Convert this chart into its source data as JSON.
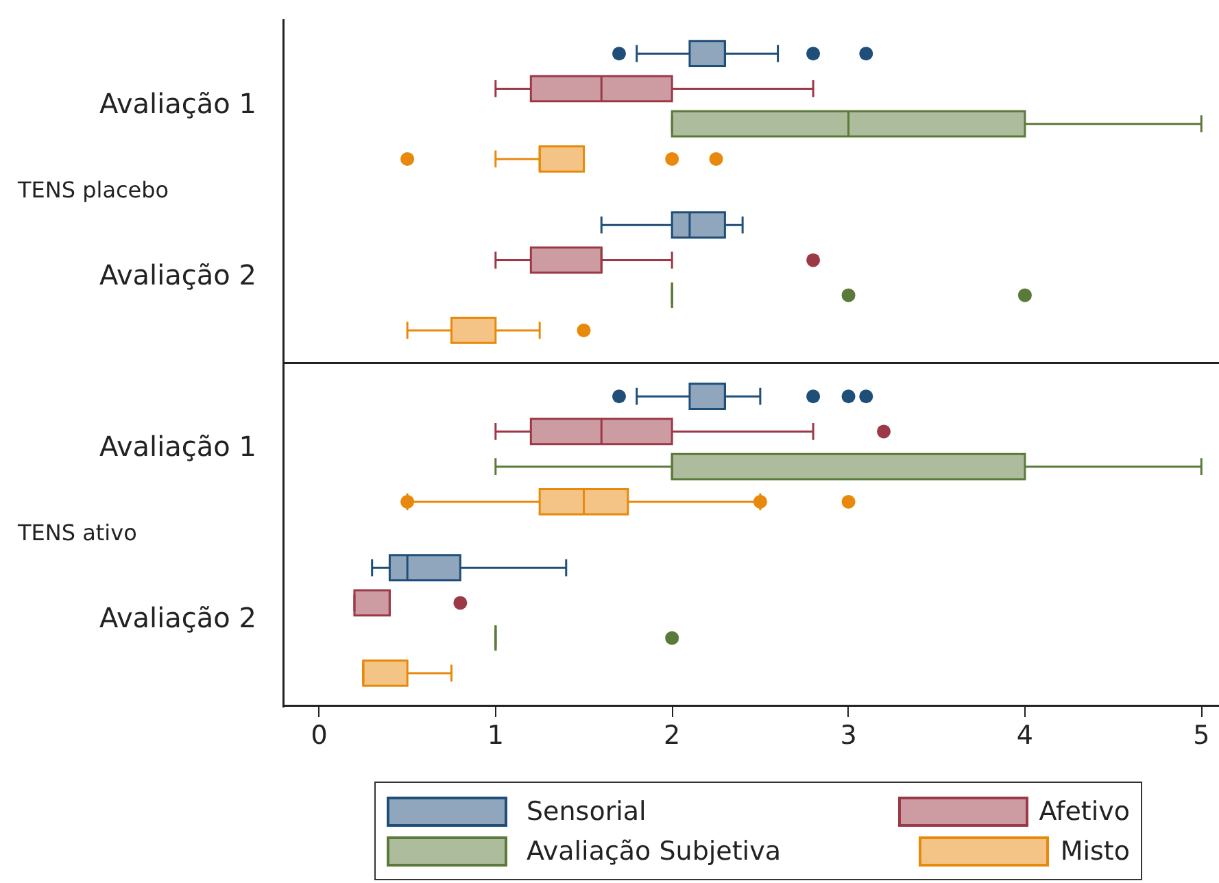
{
  "chart_data": [
    {
      "type": "box",
      "orientation": "horizontal",
      "ylabel": "TENS placebo",
      "categories": [
        "Avaliação 1",
        "Avaliação 2"
      ],
      "xlim": [
        -0.2,
        5.1
      ],
      "xticks": [
        0,
        1,
        2,
        3,
        4,
        5
      ],
      "tick_labels": "y",
      "legend": "bottom",
      "series": [
        {
          "name": "Sensorial",
          "color": "#1f4e79",
          "boxes": [
            {
              "low": 1.8,
              "q1": 2.1,
              "median": 2.3,
              "q3": 2.3,
              "high": 2.6,
              "outliers": [
                1.7,
                2.8,
                3.1
              ]
            },
            {
              "low": 1.6,
              "q1": 2.0,
              "median": 2.1,
              "q3": 2.3,
              "high": 2.4
            }
          ]
        },
        {
          "name": "Afetivo",
          "color": "#9b3a46",
          "boxes": [
            {
              "low": 1,
              "q1": 1.2,
              "median": 1.6,
              "q3": 2,
              "high": 2.8
            },
            {
              "low": 1,
              "q1": 1.2,
              "median": 1.6,
              "q3": 1.6,
              "high": 2,
              "outliers": [
                2.8
              ]
            }
          ]
        },
        {
          "name": "Avaliação Subjetiva",
          "color": "#5a7a3a",
          "boxes": [
            {
              "low": 2,
              "q1": 2,
              "median": 3,
              "q3": 4,
              "high": 5
            },
            {
              "low": 2,
              "q1": 2,
              "median": 2,
              "q3": 2,
              "high": 2,
              "outliers": [
                3,
                4
              ]
            }
          ]
        },
        {
          "name": "Misto",
          "color": "#e8890c",
          "boxes": [
            {
              "low": 1,
              "q1": 1.25,
              "median": 1.25,
              "q3": 1.5,
              "high": 1.5,
              "outliers": [
                0.5,
                2,
                2.25
              ]
            },
            {
              "low": 0.5,
              "q1": 0.75,
              "median": 0.75,
              "q3": 1,
              "high": 1.25,
              "outliers": [
                1.5
              ]
            }
          ]
        }
      ]
    },
    {
      "type": "box",
      "orientation": "horizontal",
      "ylabel": "TENS ativo",
      "categories": [
        "Avaliação 1",
        "Avaliação 2"
      ],
      "xlim": [
        -0.2,
        5.1
      ],
      "xticks": [
        0,
        1,
        2,
        3,
        4,
        5
      ],
      "series": [
        {
          "color": "#1f4e79",
          "boxes": [
            {
              "low": 1.8,
              "q1": 2.1,
              "median": 2.3,
              "q3": 2.3,
              "high": 2.5,
              "outliers": [
                1.7,
                2.8,
                3,
                3.1
              ]
            },
            {
              "low": 0.3,
              "q1": 0.4,
              "median": 0.5,
              "q3": 0.8,
              "high": 1.4
            }
          ]
        },
        {
          "color": "#9b3a46",
          "boxes": [
            {
              "low": 1,
              "q1": 1.2,
              "median": 1.6,
              "q3": 2,
              "high": 2.8,
              "outliers": [
                3.2
              ]
            },
            {
              "low": 0.2,
              "q1": 0.2,
              "median": 0.4,
              "q3": 0.4,
              "high": 0.4,
              "outliers": [
                0.8
              ]
            }
          ]
        },
        {
          "color": "#5a7a3a",
          "boxes": [
            {
              "low": 1,
              "q1": 2,
              "median": 2,
              "q3": 4,
              "high": 5
            },
            {
              "low": 1,
              "q1": 1,
              "median": 1,
              "q3": 1,
              "high": 1,
              "outliers": [
                2
              ]
            }
          ]
        },
        {
          "color": "#e8890c",
          "boxes": [
            {
              "low": 0.5,
              "q1": 1.25,
              "median": 1.5,
              "q3": 1.75,
              "high": 2.5,
              "outliers": [
                0.5,
                2.5,
                3
              ]
            },
            {
              "low": 0.25,
              "q1": 0.25,
              "median": 0.25,
              "q3": 0.5,
              "high": 0.75
            }
          ]
        }
      ]
    }
  ]
}
